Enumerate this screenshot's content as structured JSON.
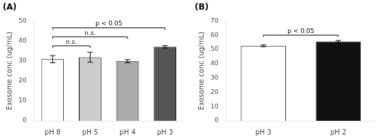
{
  "chart_data": [
    {
      "type": "bar",
      "title": "(A)",
      "categories": [
        "pH 8",
        "pH 5",
        "pH 4",
        "pH 3"
      ],
      "values": [
        30.8,
        31.8,
        29.8,
        37.0
      ],
      "errors": [
        1.8,
        2.5,
        0.8,
        0.6
      ],
      "colors": [
        "#FFFFFF",
        "#CCCCCC",
        "#AAAAAA",
        "#555555"
      ],
      "ylabel": "Exosome conc (ug/mL)",
      "ylim": [
        0,
        50
      ],
      "yticks": [
        0,
        10,
        20,
        30,
        40,
        50
      ],
      "grid": false,
      "annotations": [
        {
          "from": 0,
          "to": 1,
          "y": 37.5,
          "drop": 1.0,
          "text": "n.s."
        },
        {
          "from": 0,
          "to": 2,
          "y": 42.0,
          "drop": 1.0,
          "text": "n.s."
        },
        {
          "from": 0,
          "to": 3,
          "y": 46.5,
          "drop": 1.0,
          "text": "p < 0.05"
        }
      ]
    },
    {
      "type": "bar",
      "title": "(B)",
      "categories": [
        "pH 3",
        "pH 2"
      ],
      "values": [
        52.5,
        55.5
      ],
      "errors": [
        0.6,
        0.7
      ],
      "colors": [
        "#FFFFFF",
        "#111111"
      ],
      "ylabel": "Exosome conc (ug/mL)",
      "ylim": [
        0,
        70
      ],
      "yticks": [
        0,
        10,
        20,
        30,
        40,
        50,
        60,
        70
      ],
      "grid": false,
      "annotations": [
        {
          "from": 0,
          "to": 1,
          "y": 60.0,
          "drop": 1.2,
          "text": "p < 0.05"
        }
      ]
    }
  ]
}
